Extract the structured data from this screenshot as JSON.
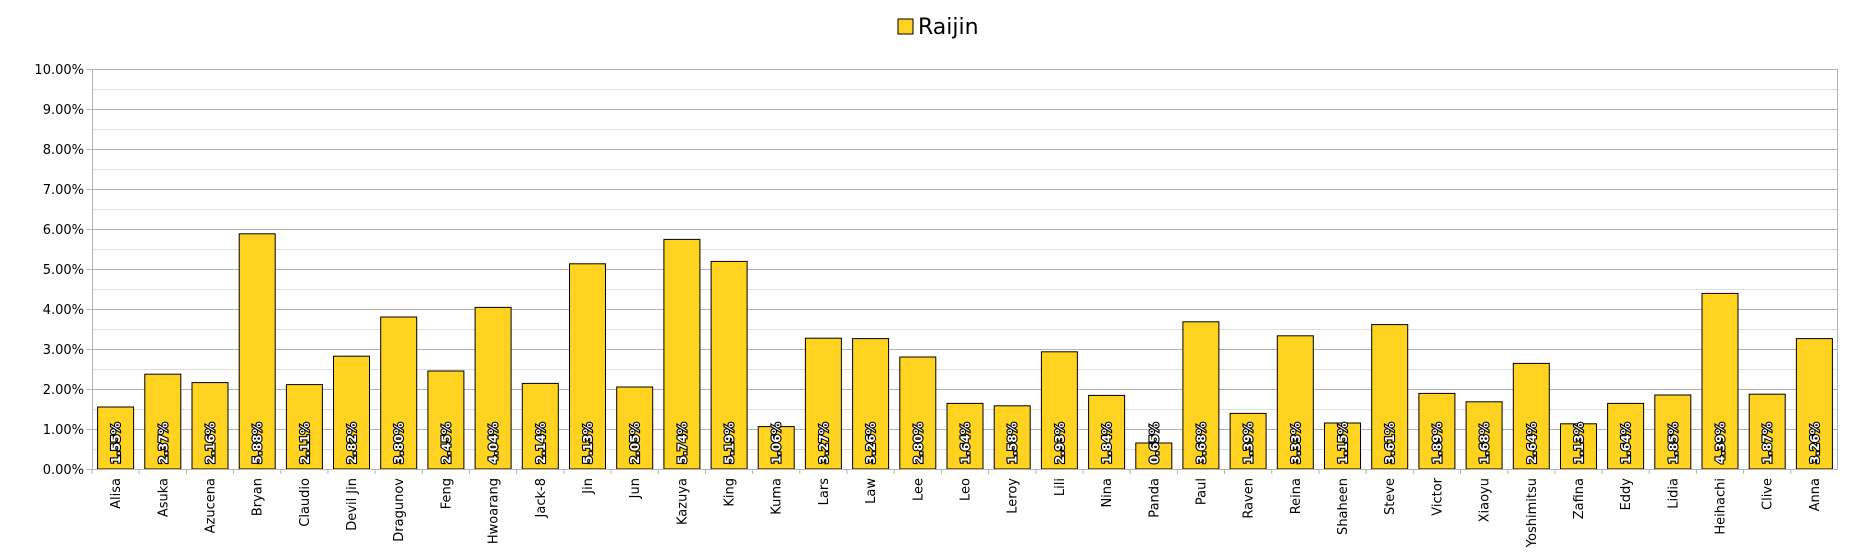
{
  "chart_data": {
    "type": "bar",
    "title": "",
    "xlabel": "",
    "ylabel": "",
    "ylim": [
      0,
      10
    ],
    "yticks": [
      "0.00%",
      "1.00%",
      "2.00%",
      "3.00%",
      "4.00%",
      "5.00%",
      "6.00%",
      "7.00%",
      "8.00%",
      "9.00%",
      "10.00%"
    ],
    "grid": true,
    "legend": "top-center",
    "bar_color": "#ffd320",
    "categories": [
      "Alisa",
      "Asuka",
      "Azucena",
      "Bryan",
      "Claudio",
      "Devil Jin",
      "Dragunov",
      "Feng",
      "Hwoarang",
      "Jack-8",
      "Jin",
      "Jun",
      "Kazuya",
      "King",
      "Kuma",
      "Lars",
      "Law",
      "Lee",
      "Leo",
      "Leroy",
      "Lili",
      "Nina",
      "Panda",
      "Paul",
      "Raven",
      "Reina",
      "Shaheen",
      "Steve",
      "Victor",
      "Xiaoyu",
      "Yoshimitsu",
      "Zafina",
      "Eddy",
      "Lidia",
      "Heihachi",
      "Clive",
      "Anna"
    ],
    "series": [
      {
        "name": "Raijin",
        "values": [
          1.55,
          2.37,
          2.16,
          5.88,
          2.11,
          2.82,
          3.8,
          2.45,
          4.04,
          2.14,
          5.13,
          2.05,
          5.74,
          5.19,
          1.06,
          3.27,
          3.26,
          2.8,
          1.64,
          1.58,
          2.93,
          1.84,
          0.65,
          3.68,
          1.39,
          3.33,
          1.15,
          3.61,
          1.89,
          1.68,
          2.64,
          1.13,
          1.64,
          1.85,
          4.39,
          1.87,
          3.26
        ],
        "labels": [
          "1.55%",
          "2.37%",
          "2.16%",
          "5.88%",
          "2.11%",
          "2.82%",
          "3.80%",
          "2.45%",
          "4.04%",
          "2.14%",
          "5.13%",
          "2.05%",
          "5.74%",
          "5.19%",
          "1.06%",
          "3.27%",
          "3.26%",
          "2.80%",
          "1.64%",
          "1.58%",
          "2.93%",
          "1.84%",
          "0.65%",
          "3.68%",
          "1.39%",
          "3.33%",
          "1.15%",
          "3.61%",
          "1.89%",
          "1.68%",
          "2.64%",
          "1.13%",
          "1.64%",
          "1.85%",
          "4.39%",
          "1.87%",
          "3.26%"
        ]
      }
    ]
  }
}
